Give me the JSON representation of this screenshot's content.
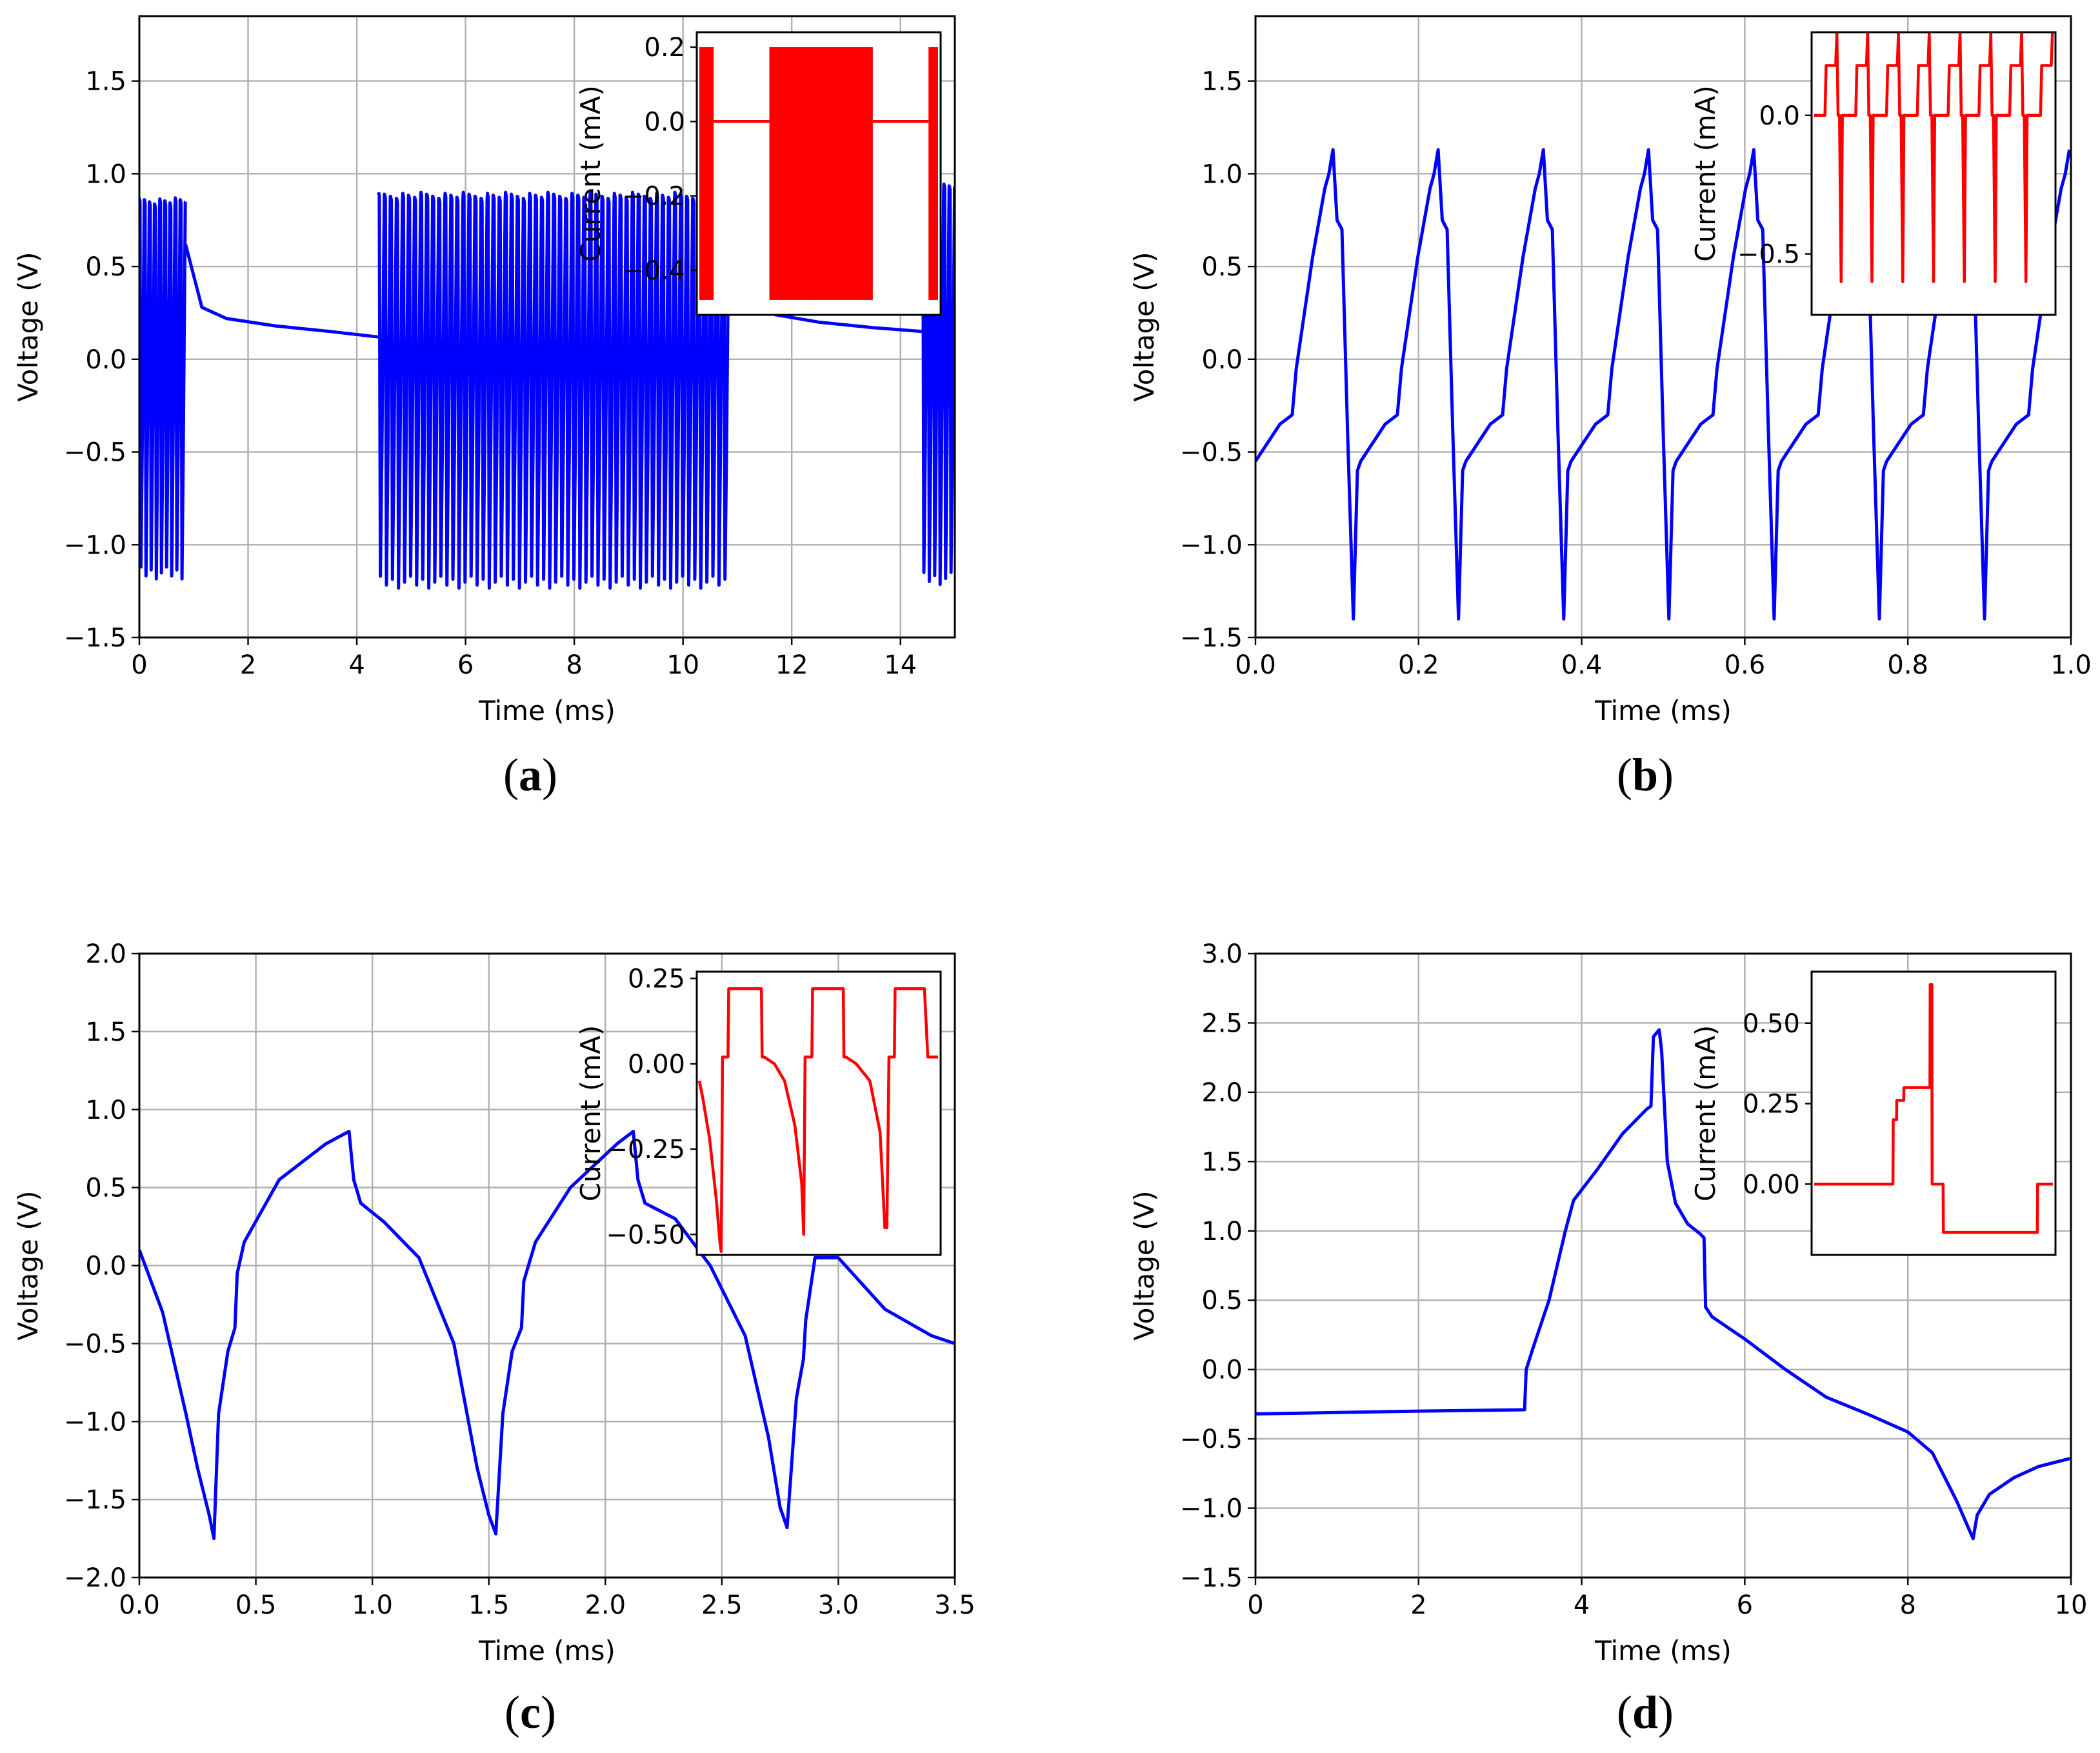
{
  "figure": {
    "captions": [
      {
        "open": "(",
        "letter": "a",
        "close": ")"
      },
      {
        "open": "(",
        "letter": "b",
        "close": ")"
      },
      {
        "open": "(",
        "letter": "c",
        "close": ")"
      },
      {
        "open": "(",
        "letter": "d",
        "close": ")"
      }
    ]
  },
  "chart_data": [
    {
      "id": "a",
      "type": "line",
      "xlabel": "Time (ms)",
      "ylabel": "Voltage (V)",
      "xlim": [
        0,
        15
      ],
      "ylim": [
        -1.5,
        1.85
      ],
      "xticks": [
        0,
        2,
        4,
        6,
        8,
        10,
        12,
        14
      ],
      "xtick_labels": [
        "0",
        "2",
        "4",
        "6",
        "8",
        "10",
        "12",
        "14"
      ],
      "yticks": [
        -1.5,
        -1.0,
        -0.5,
        0.0,
        0.5,
        1.0,
        1.5
      ],
      "ytick_labels": [
        "−1.5",
        "−1.0",
        "−0.5",
        "0.0",
        "0.5",
        "1.0",
        "1.5"
      ],
      "grid": true,
      "color": "#0000ff",
      "series": [
        {
          "name": "voltage",
          "kind": "oscillation",
          "x": [
            0.0,
            0.85
          ],
          "top": 0.87,
          "bottom": -1.12,
          "count": 9
        },
        {
          "name": "voltage",
          "kind": "decay",
          "x": [
            0.85,
            1.15,
            1.6,
            2.5,
            3.5,
            4.4
          ],
          "y": [
            0.62,
            0.28,
            0.22,
            0.18,
            0.15,
            0.12
          ]
        },
        {
          "name": "voltage",
          "kind": "oscillation",
          "x": [
            4.4,
            10.85
          ],
          "top": 0.9,
          "bottom": -1.17,
          "count": 58
        },
        {
          "name": "voltage",
          "kind": "decay",
          "x": [
            10.85,
            11.15,
            11.7,
            12.5,
            13.5,
            14.4
          ],
          "y": [
            0.45,
            0.3,
            0.24,
            0.2,
            0.17,
            0.15
          ]
        },
        {
          "name": "voltage",
          "kind": "oscillation",
          "x": [
            14.4,
            15.0
          ],
          "top": 0.95,
          "bottom": -1.15,
          "count": 6
        }
      ],
      "inset": {
        "ylabel": "Current (mA)",
        "xlim": [
          0,
          15
        ],
        "ylim": [
          -0.52,
          0.24
        ],
        "yticks": [
          0.2,
          0.0,
          -0.2,
          -0.4
        ],
        "ytick_labels": [
          "0.2",
          "0.0",
          "−0.2",
          "−0.4"
        ],
        "color": "#ff0000",
        "series": [
          {
            "kind": "band",
            "x": [
              0.0,
              0.9
            ],
            "top": 0.2,
            "bottom": -0.48
          },
          {
            "kind": "line",
            "x": [
              0.9,
              4.4
            ],
            "y": [
              0.0,
              0.0
            ]
          },
          {
            "kind": "band",
            "x": [
              4.4,
              10.9
            ],
            "top": 0.2,
            "bottom": -0.48
          },
          {
            "kind": "line",
            "x": [
              10.9,
              14.4
            ],
            "y": [
              0.0,
              0.0
            ]
          },
          {
            "kind": "band",
            "x": [
              14.4,
              15.0
            ],
            "top": 0.2,
            "bottom": -0.48
          }
        ]
      }
    },
    {
      "id": "b",
      "type": "line",
      "xlabel": "Time (ms)",
      "ylabel": "Voltage (V)",
      "xlim": [
        0,
        1.0
      ],
      "ylim": [
        -1.5,
        1.85
      ],
      "xticks": [
        0.0,
        0.2,
        0.4,
        0.6,
        0.8,
        1.0
      ],
      "xtick_labels": [
        "0.0",
        "0.2",
        "0.4",
        "0.6",
        "0.8",
        "1.0"
      ],
      "yticks": [
        -1.5,
        -1.0,
        -0.5,
        0.0,
        0.5,
        1.0,
        1.5
      ],
      "ytick_labels": [
        "−1.5",
        "−1.0",
        "−0.5",
        "0.0",
        "0.5",
        "1.0",
        "1.5"
      ],
      "grid": true,
      "color": "#0000ff",
      "series": [
        {
          "name": "voltage",
          "kind": "periodic",
          "start": 0.0,
          "period": 0.129,
          "t_end": 1.0,
          "x_phase": [
            0.0,
            0.03,
            0.045,
            0.05,
            0.07,
            0.085,
            0.09,
            0.095,
            0.1,
            0.106,
            0.113,
            0.12,
            0.125,
            0.129
          ],
          "y": [
            -0.55,
            -0.35,
            -0.3,
            -0.05,
            0.55,
            0.92,
            1.0,
            1.13,
            0.75,
            0.7,
            -0.4,
            -1.4,
            -0.6,
            -0.55
          ]
        }
      ],
      "inset": {
        "ylabel": "Current (mA)",
        "xlim": [
          0,
          1.0
        ],
        "ylim": [
          -0.72,
          0.3
        ],
        "yticks": [
          0.0,
          -0.5
        ],
        "ytick_labels": [
          "0.0",
          "−0.5"
        ],
        "color": "#ff0000",
        "series": [
          {
            "kind": "periodic",
            "period": 0.129,
            "t_end": 1.0,
            "x_phase": [
              0.0,
              0.045,
              0.05,
              0.09,
              0.095,
              0.1,
              0.106,
              0.113,
              0.118,
              0.129
            ],
            "y": [
              0.0,
              0.0,
              0.18,
              0.18,
              0.3,
              0.0,
              0.0,
              -0.6,
              0.0,
              0.0
            ]
          }
        ]
      }
    },
    {
      "id": "c",
      "type": "line",
      "xlabel": "Time (ms)",
      "ylabel": "Voltage (V)",
      "xlim": [
        0,
        3.5
      ],
      "ylim": [
        -2.0,
        2.0
      ],
      "xticks": [
        0.0,
        0.5,
        1.0,
        1.5,
        2.0,
        2.5,
        3.0,
        3.5
      ],
      "xtick_labels": [
        "0.0",
        "0.5",
        "1.0",
        "1.5",
        "2.0",
        "2.5",
        "3.0",
        "3.5"
      ],
      "yticks": [
        -2.0,
        -1.5,
        -1.0,
        -0.5,
        0.0,
        0.5,
        1.0,
        1.5,
        2.0
      ],
      "ytick_labels": [
        "−2.0",
        "−1.5",
        "−1.0",
        "−0.5",
        "0.0",
        "0.5",
        "1.0",
        "1.5",
        "2.0"
      ],
      "grid": true,
      "color": "#0000ff",
      "series": [
        {
          "name": "voltage",
          "kind": "points",
          "x": [
            0.0,
            0.1,
            0.2,
            0.25,
            0.3,
            0.32,
            0.34,
            0.38,
            0.41,
            0.42,
            0.45,
            0.6,
            0.8,
            0.9,
            0.92,
            0.95,
            1.05,
            1.2,
            1.35,
            1.45,
            1.5,
            1.53,
            1.56,
            1.6,
            1.64,
            1.65,
            1.7,
            1.85,
            2.05,
            2.12,
            2.14,
            2.17,
            2.3,
            2.45,
            2.6,
            2.7,
            2.75,
            2.78,
            2.82,
            2.85,
            2.86,
            2.9,
            3.0,
            3.2,
            3.4,
            3.5
          ],
          "y": [
            0.1,
            -0.3,
            -0.95,
            -1.3,
            -1.6,
            -1.75,
            -0.95,
            -0.55,
            -0.4,
            -0.05,
            0.15,
            0.55,
            0.78,
            0.86,
            0.55,
            0.4,
            0.28,
            0.05,
            -0.5,
            -1.3,
            -1.6,
            -1.72,
            -0.95,
            -0.55,
            -0.4,
            -0.1,
            0.15,
            0.5,
            0.78,
            0.86,
            0.55,
            0.4,
            0.3,
            0.0,
            -0.45,
            -1.1,
            -1.55,
            -1.68,
            -0.85,
            -0.6,
            -0.35,
            0.05,
            0.05,
            -0.28,
            -0.45,
            -0.5
          ]
        }
      ],
      "inset": {
        "ylabel": "Current (mA)",
        "xlim": [
          0,
          3.5
        ],
        "ylim": [
          -0.56,
          0.27
        ],
        "yticks": [
          0.25,
          0.0,
          -0.25,
          -0.5
        ],
        "ytick_labels": [
          "0.25",
          "0.00",
          "−0.25",
          "−0.50"
        ],
        "color": "#ff0000",
        "series": [
          {
            "kind": "points",
            "x": [
              0.0,
              0.05,
              0.15,
              0.25,
              0.3,
              0.32,
              0.33,
              0.34,
              0.42,
              0.43,
              0.91,
              0.92,
              0.95,
              1.1,
              1.25,
              1.4,
              1.5,
              1.53,
              1.55,
              1.65,
              1.66,
              2.11,
              2.12,
              2.15,
              2.3,
              2.5,
              2.65,
              2.72,
              2.75,
              2.78,
              2.86,
              2.87,
              3.3,
              3.35,
              3.5
            ],
            "y": [
              -0.05,
              -0.1,
              -0.22,
              -0.4,
              -0.52,
              -0.55,
              -0.3,
              0.02,
              0.02,
              0.22,
              0.22,
              0.02,
              0.02,
              0.0,
              -0.05,
              -0.18,
              -0.35,
              -0.5,
              0.02,
              0.02,
              0.22,
              0.22,
              0.02,
              0.02,
              0.0,
              -0.05,
              -0.2,
              -0.48,
              -0.48,
              0.02,
              0.02,
              0.22,
              0.22,
              0.02,
              0.02
            ]
          }
        ]
      }
    },
    {
      "id": "d",
      "type": "line",
      "xlabel": "Time (ms)",
      "ylabel": "Voltage (V)",
      "xlim": [
        0,
        10
      ],
      "ylim": [
        -1.5,
        3.0
      ],
      "xticks": [
        0,
        2,
        4,
        6,
        8,
        10
      ],
      "xtick_labels": [
        "0",
        "2",
        "4",
        "6",
        "8",
        "10"
      ],
      "yticks": [
        -1.5,
        -1.0,
        -0.5,
        0.0,
        0.5,
        1.0,
        1.5,
        2.0,
        2.5,
        3.0
      ],
      "ytick_labels": [
        "−1.5",
        "−1.0",
        "−0.5",
        "0.0",
        "0.5",
        "1.0",
        "1.5",
        "2.0",
        "2.5",
        "3.0"
      ],
      "grid": true,
      "color": "#0000ff",
      "series": [
        {
          "name": "voltage",
          "kind": "points",
          "x": [
            0.0,
            1.0,
            2.0,
            3.3,
            3.32,
            3.4,
            3.6,
            3.8,
            3.9,
            4.2,
            4.5,
            4.8,
            4.85,
            4.88,
            4.95,
            4.98,
            5.05,
            5.15,
            5.3,
            5.45,
            5.5,
            5.52,
            5.6,
            6.0,
            6.5,
            7.0,
            7.5,
            8.0,
            8.3,
            8.6,
            8.8,
            8.85,
            9.0,
            9.3,
            9.6,
            10.0
          ],
          "y": [
            -0.32,
            -0.31,
            -0.3,
            -0.29,
            0.0,
            0.15,
            0.5,
            1.0,
            1.22,
            1.45,
            1.7,
            1.88,
            1.9,
            2.4,
            2.45,
            2.3,
            1.5,
            1.2,
            1.05,
            0.98,
            0.95,
            0.45,
            0.38,
            0.22,
            0.0,
            -0.2,
            -0.32,
            -0.45,
            -0.6,
            -0.95,
            -1.22,
            -1.05,
            -0.9,
            -0.78,
            -0.7,
            -0.64
          ]
        }
      ],
      "inset": {
        "ylabel": "Current (mA)",
        "xlim": [
          0,
          10
        ],
        "ylim": [
          -0.22,
          0.66
        ],
        "yticks": [
          0.5,
          0.25,
          0.0
        ],
        "ytick_labels": [
          "0.50",
          "0.25",
          "0.00"
        ],
        "color": "#ff0000",
        "series": [
          {
            "kind": "points",
            "x": [
              0.0,
              3.3,
              3.31,
              3.45,
              3.46,
              3.75,
              3.76,
              4.85,
              4.86,
              4.93,
              4.94,
              5.4,
              5.41,
              9.35,
              9.36,
              10.0
            ],
            "y": [
              0.0,
              0.0,
              0.2,
              0.2,
              0.26,
              0.26,
              0.3,
              0.3,
              0.62,
              0.62,
              0.0,
              0.0,
              -0.15,
              -0.15,
              0.0,
              0.0
            ]
          }
        ]
      }
    }
  ]
}
